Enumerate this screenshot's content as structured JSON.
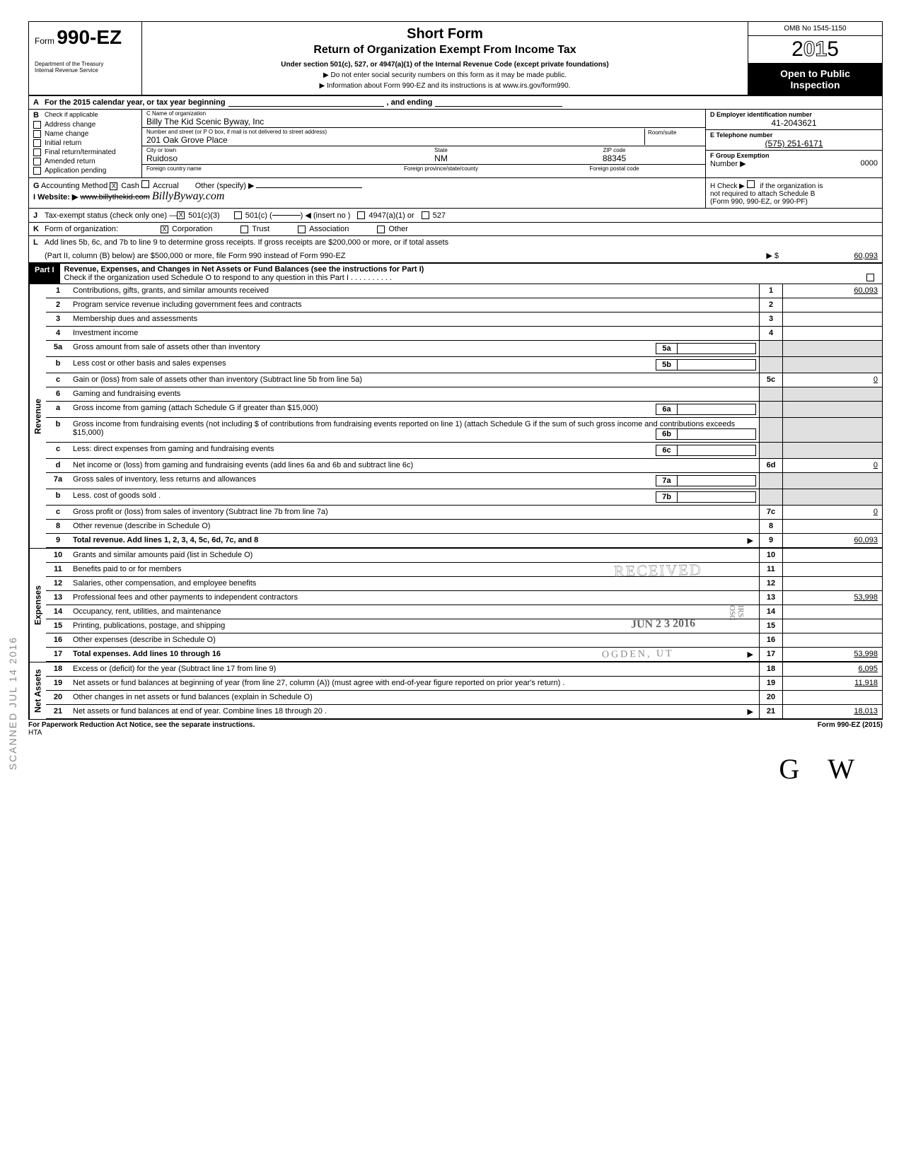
{
  "header": {
    "form_prefix": "Form",
    "form_number": "990-EZ",
    "title": "Short Form",
    "subtitle": "Return of Organization Exempt From Income Tax",
    "under": "Under section 501(c), 527, or 4947(a)(1) of the Internal Revenue Code (except private foundations)",
    "warn1": "Do not enter social security numbers on this form as it may be made public.",
    "warn2": "Information about Form 990-EZ and its instructions is at www.irs.gov/form990.",
    "dept1": "Department of the Treasury",
    "dept2": "Internal Revenue Service",
    "omb": "OMB No 1545-1150",
    "year_prefix": "2",
    "year_mid": "01",
    "year_suffix": "5",
    "open1": "Open to Public",
    "open2": "Inspection"
  },
  "A": {
    "label": "A",
    "text1": "For the 2015 calendar year, or tax year beginning",
    "text2": ", and ending"
  },
  "B": {
    "label": "B",
    "check_header": "Check if applicable",
    "checks": [
      {
        "label": "Address change",
        "checked": false
      },
      {
        "label": "Name change",
        "checked": false
      },
      {
        "label": "Initial return",
        "checked": false
      },
      {
        "label": "Final return/terminated",
        "checked": false
      },
      {
        "label": "Amended return",
        "checked": false
      },
      {
        "label": "Application pending",
        "checked": false
      }
    ],
    "C": {
      "lbl": "C  Name of organization",
      "val": "Billy The Kid Scenic Byway, Inc",
      "addr_lbl": "Number and street (or P O  box, if mail is not delivered to street address)",
      "addr_val": "201 Oak Grove Place",
      "room_lbl": "Room/suite",
      "city_lbl": "City or town",
      "state_lbl": "State",
      "zip_lbl": "ZIP code",
      "city": "Ruidoso",
      "state": "NM",
      "zip": "88345",
      "foreign_lbl": "Foreign country name",
      "foreign_prov_lbl": "Foreign province/state/county",
      "foreign_post_lbl": "Foreign postal code"
    },
    "D": {
      "lbl": "D  Employer identification number",
      "val": "41-2043621"
    },
    "E": {
      "lbl": "E  Telephone number",
      "val": "(575) 251-6171"
    },
    "F": {
      "lbl": "F  Group Exemption",
      "lbl2": "Number ▶",
      "val": "0000"
    }
  },
  "G": {
    "label": "G",
    "text": "Accounting Method",
    "cash": "Cash",
    "accrual": "Accrual",
    "other": "Other (specify)",
    "cash_checked": true
  },
  "I": {
    "label": "I",
    "text": "Website: ▶",
    "strike": "www.billythekid.com",
    "handwrite": "BillyByway.com"
  },
  "H": {
    "text1": "H  Check ▶",
    "text2": "if the organization is",
    "text3": "not required to attach Schedule B",
    "text4": "(Form 990, 990-EZ, or 990-PF)"
  },
  "J": {
    "label": "J",
    "text": "Tax-exempt status (check only one) —",
    "opt1": "501(c)(3)",
    "opt2": "501(c) (",
    "opt2b": ") ◀ (insert no )",
    "opt3": "4947(a)(1) or",
    "opt4": "527",
    "checked": true
  },
  "K": {
    "label": "K",
    "text": "Form of organization:",
    "corp": "Corporation",
    "trust": "Trust",
    "assoc": "Association",
    "other": "Other",
    "corp_checked": true
  },
  "L": {
    "label": "L",
    "text1": "Add lines 5b, 6c, and 7b to line 9 to determine gross receipts. If gross receipts are $200,000 or more, or if total assets",
    "text2": "(Part II, column (B) below) are $500,000 or more, file Form 990 instead of Form 990-EZ",
    "arrow_lbl": "▶ $",
    "val": "60,093"
  },
  "PartI": {
    "label": "Part I",
    "title": "Revenue, Expenses, and Changes in Net Assets or Fund Balances (see the instructions for Part I)",
    "check_text": "Check if the organization used Schedule O to respond to any question in this Part I ."
  },
  "revenue_label": "Revenue",
  "expenses_label": "Expenses",
  "netassets_label": "Net Assets",
  "lines": {
    "1": {
      "n": "1",
      "d": "Contributions, gifts, grants, and similar amounts received",
      "rn": "1",
      "amt": "60,093"
    },
    "2": {
      "n": "2",
      "d": "Program service revenue including government fees and contracts",
      "rn": "2",
      "amt": ""
    },
    "3": {
      "n": "3",
      "d": "Membership dues and assessments",
      "rn": "3",
      "amt": ""
    },
    "4": {
      "n": "4",
      "d": "Investment income",
      "rn": "4",
      "amt": ""
    },
    "5a": {
      "n": "5a",
      "d": "Gross amount from sale of assets other than inventory",
      "ib": "5a"
    },
    "5b": {
      "n": "b",
      "d": "Less  cost or other basis and sales expenses",
      "ib": "5b"
    },
    "5c": {
      "n": "c",
      "d": "Gain or (loss) from sale of assets other than inventory (Subtract line 5b from line 5a)",
      "rn": "5c",
      "amt": "0"
    },
    "6": {
      "n": "6",
      "d": "Gaming and fundraising events"
    },
    "6a": {
      "n": "a",
      "d": "Gross income from gaming (attach Schedule G if greater than $15,000)",
      "ib": "6a"
    },
    "6b": {
      "n": "b",
      "d": "Gross income from fundraising events (not including    $               of contributions from fundraising events reported on line 1) (attach Schedule G if the sum of such gross income and contributions exceeds $15,000)",
      "ib": "6b"
    },
    "6c": {
      "n": "c",
      "d": "Less: direct expenses from gaming and fundraising events",
      "ib": "6c"
    },
    "6d": {
      "n": "d",
      "d": "Net income or (loss) from gaming and fundraising events (add lines 6a and 6b and subtract line 6c)",
      "rn": "6d",
      "amt": "0"
    },
    "7a": {
      "n": "7a",
      "d": "Gross sales of inventory, less returns and allowances",
      "ib": "7a"
    },
    "7b": {
      "n": "b",
      "d": "Less. cost of goods sold .",
      "ib": "7b"
    },
    "7c": {
      "n": "c",
      "d": "Gross profit or (loss) from sales of inventory (Subtract line 7b from line 7a)",
      "rn": "7c",
      "amt": "0"
    },
    "8": {
      "n": "8",
      "d": "Other revenue (describe in Schedule O)",
      "rn": "8",
      "amt": ""
    },
    "9": {
      "n": "9",
      "d": "Total revenue. Add lines 1, 2, 3, 4, 5c, 6d, 7c, and 8",
      "rn": "9",
      "amt": "60,093",
      "bold": true,
      "arrow": true
    },
    "10": {
      "n": "10",
      "d": "Grants and similar amounts paid (list in Schedule O)",
      "rn": "10",
      "amt": ""
    },
    "11": {
      "n": "11",
      "d": "Benefits paid to or for members",
      "rn": "11",
      "amt": ""
    },
    "12": {
      "n": "12",
      "d": "Salaries, other compensation, and employee benefits",
      "rn": "12",
      "amt": ""
    },
    "13": {
      "n": "13",
      "d": "Professional fees and other payments to independent contractors",
      "rn": "13",
      "amt": "53,998"
    },
    "14": {
      "n": "14",
      "d": "Occupancy, rent, utilities, and maintenance",
      "rn": "14",
      "amt": ""
    },
    "15": {
      "n": "15",
      "d": "Printing, publications, postage, and shipping",
      "rn": "15",
      "amt": ""
    },
    "16": {
      "n": "16",
      "d": "Other expenses (describe in Schedule O)",
      "rn": "16",
      "amt": ""
    },
    "17": {
      "n": "17",
      "d": "Total expenses. Add lines 10 through 16",
      "rn": "17",
      "amt": "53,998",
      "bold": true,
      "arrow": true
    },
    "18": {
      "n": "18",
      "d": "Excess or (deficit) for the year (Subtract line 17 from line 9)",
      "rn": "18",
      "amt": "6,095"
    },
    "19": {
      "n": "19",
      "d": "Net assets or fund balances at beginning of year (from line 27, column (A)) (must agree with end-of-year figure reported on prior year's return) .",
      "rn": "19",
      "amt": "11,918"
    },
    "20": {
      "n": "20",
      "d": "Other changes in net assets or fund balances (explain in Schedule O)",
      "rn": "20",
      "amt": ""
    },
    "21": {
      "n": "21",
      "d": "Net assets or fund balances at end of year. Combine lines 18 through 20  .",
      "rn": "21",
      "amt": "18,013",
      "arrow": true
    }
  },
  "stamps": {
    "received": "RECEIVED",
    "date": "JUN 2 3 2016",
    "ogden": "OGDEN, UT",
    "side": "IRS-OSC"
  },
  "footer": {
    "left": "For Paperwork Reduction Act Notice, see the separate instructions.",
    "hta": "HTA",
    "right": "Form 990-EZ (2015)"
  },
  "scan_side": "SCANNED JUL 14 2016"
}
